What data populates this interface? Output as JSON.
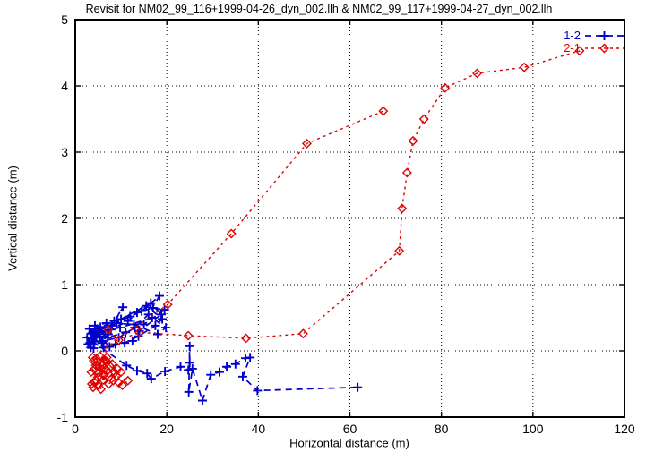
{
  "chart_data": {
    "type": "scatter",
    "title": "Revisit for NM02_99_116+1999-04-26_dyn_002.llh & NM02_99_117+1999-04-27_dyn_002.llh",
    "xlabel": "Horizontal distance (m)",
    "ylabel": "Vertical distance (m)",
    "xlim": [
      0,
      120
    ],
    "ylim": [
      -1,
      5
    ],
    "xticks": [
      0,
      20,
      40,
      60,
      80,
      100,
      120
    ],
    "yticks": [
      -1,
      0,
      1,
      2,
      3,
      4,
      5
    ],
    "grid": true,
    "legend_position": "top-right",
    "background_color": "#ffffff",
    "frame_color": "#000000",
    "series": [
      {
        "name": "1-2",
        "color": "#0000cd",
        "marker": "plus",
        "line": "dashed",
        "points": [
          [
            2.8,
            0.1
          ],
          [
            3.5,
            0.26
          ],
          [
            4.2,
            0.14
          ],
          [
            3.1,
            0.33
          ],
          [
            5.0,
            0.28
          ],
          [
            4.0,
            0.04
          ],
          [
            3.6,
            0.18
          ],
          [
            5.5,
            0.36
          ],
          [
            4.6,
            0.22
          ],
          [
            3.2,
            0.12
          ],
          [
            6.5,
            0.3
          ],
          [
            8.0,
            0.38
          ],
          [
            10.4,
            0.66
          ],
          [
            7.2,
            0.25
          ],
          [
            5.8,
            0.12
          ],
          [
            4.4,
            0.28
          ],
          [
            9.0,
            0.42
          ],
          [
            12.0,
            0.52
          ],
          [
            14.5,
            0.6
          ],
          [
            18.4,
            0.83
          ],
          [
            16.0,
            0.55
          ],
          [
            13.0,
            0.35
          ],
          [
            9.5,
            0.2
          ],
          [
            6.0,
            0.15
          ],
          [
            4.8,
            0.33
          ],
          [
            8.5,
            0.45
          ],
          [
            13.5,
            0.58
          ],
          [
            17.0,
            0.65
          ],
          [
            19.5,
            0.62
          ],
          [
            15.0,
            0.4
          ],
          [
            11.0,
            0.28
          ],
          [
            7.0,
            0.2
          ],
          [
            5.2,
            0.3
          ],
          [
            10.0,
            0.48
          ],
          [
            16.5,
            0.72
          ],
          [
            18.8,
            0.55
          ],
          [
            14.0,
            0.3
          ],
          [
            12.5,
            0.15
          ],
          [
            8.8,
            0.1
          ],
          [
            6.2,
            0.05
          ],
          [
            4.1,
            0.2
          ],
          [
            7.8,
            0.32
          ],
          [
            11.5,
            0.45
          ],
          [
            15.5,
            0.68
          ],
          [
            19.0,
            0.48
          ],
          [
            17.5,
            0.38
          ],
          [
            13.8,
            0.22
          ],
          [
            10.8,
            0.12
          ],
          [
            7.5,
            0.06
          ],
          [
            5.4,
            0.22
          ],
          [
            3.8,
            0.28
          ],
          [
            9.8,
            0.35
          ],
          [
            16.8,
            0.5
          ],
          [
            19.8,
            0.35
          ],
          [
            18.0,
            0.25
          ],
          [
            12.8,
            0.4
          ],
          [
            6.8,
            0.42
          ],
          [
            4.3,
            0.38
          ],
          [
            3.4,
            0.05
          ],
          [
            2.6,
            0.2
          ],
          [
            11.2,
            -0.22
          ],
          [
            13.5,
            -0.3
          ],
          [
            15.7,
            -0.34
          ],
          [
            16.6,
            -0.42
          ],
          [
            19.6,
            -0.31
          ],
          [
            23.0,
            -0.24
          ],
          [
            24.7,
            -0.29
          ],
          [
            25.0,
            -0.18
          ],
          [
            25.0,
            0.07
          ],
          [
            24.8,
            -0.62
          ],
          [
            25.6,
            -0.27
          ],
          [
            27.8,
            -0.75
          ],
          [
            29.6,
            -0.36
          ],
          [
            31.5,
            -0.32
          ],
          [
            33.1,
            -0.24
          ],
          [
            35.0,
            -0.2
          ],
          [
            37.2,
            -0.11
          ],
          [
            38.2,
            -0.1
          ],
          [
            36.6,
            -0.39
          ],
          [
            39.8,
            -0.6
          ],
          [
            61.7,
            -0.55
          ]
        ]
      },
      {
        "name": "2-1",
        "color": "#e00000",
        "marker": "diamond",
        "line": "dashed",
        "points": [
          [
            67.3,
            3.62
          ],
          [
            50.6,
            3.13
          ],
          [
            34.1,
            1.77
          ],
          [
            20.2,
            0.7
          ],
          [
            3.8,
            -0.1
          ],
          [
            4.5,
            -0.22
          ],
          [
            3.5,
            -0.32
          ],
          [
            4.9,
            -0.4
          ],
          [
            4.0,
            -0.15
          ],
          [
            5.3,
            -0.25
          ],
          [
            6.0,
            -0.35
          ],
          [
            4.6,
            -0.45
          ],
          [
            3.6,
            -0.5
          ],
          [
            4.2,
            -0.28
          ],
          [
            5.7,
            -0.18
          ],
          [
            6.4,
            -0.26
          ],
          [
            5.1,
            -0.33
          ],
          [
            6.1,
            -0.44
          ],
          [
            7.0,
            -0.3
          ],
          [
            5.9,
            -0.22
          ],
          [
            4.7,
            -0.12
          ],
          [
            6.7,
            -0.15
          ],
          [
            7.7,
            -0.24
          ],
          [
            6.3,
            -0.36
          ],
          [
            7.9,
            -0.42
          ],
          [
            8.7,
            -0.33
          ],
          [
            7.3,
            -0.5
          ],
          [
            8.3,
            -0.45
          ],
          [
            9.5,
            -0.48
          ],
          [
            10.3,
            -0.52
          ],
          [
            11.5,
            -0.45
          ],
          [
            9.0,
            -0.38
          ],
          [
            8.1,
            -0.2
          ],
          [
            9.2,
            -0.27
          ],
          [
            10.0,
            -0.32
          ],
          [
            4.3,
            -0.48
          ],
          [
            3.9,
            -0.55
          ],
          [
            5.0,
            -0.52
          ],
          [
            5.6,
            -0.58
          ],
          [
            6.9,
            -0.1
          ],
          [
            5.4,
            -0.08
          ],
          [
            6.5,
            -0.15
          ],
          [
            7.2,
            0.32
          ],
          [
            9.5,
            0.16
          ],
          [
            14.0,
            0.28
          ],
          [
            24.7,
            0.23
          ],
          [
            37.3,
            0.19
          ],
          [
            49.8,
            0.26
          ],
          [
            70.8,
            1.51
          ],
          [
            71.4,
            2.15
          ],
          [
            72.5,
            2.69
          ],
          [
            73.8,
            3.17
          ],
          [
            76.2,
            3.5
          ],
          [
            80.8,
            3.97
          ],
          [
            87.8,
            4.19
          ],
          [
            98.1,
            4.28
          ],
          [
            110.2,
            4.53
          ]
        ]
      }
    ]
  }
}
